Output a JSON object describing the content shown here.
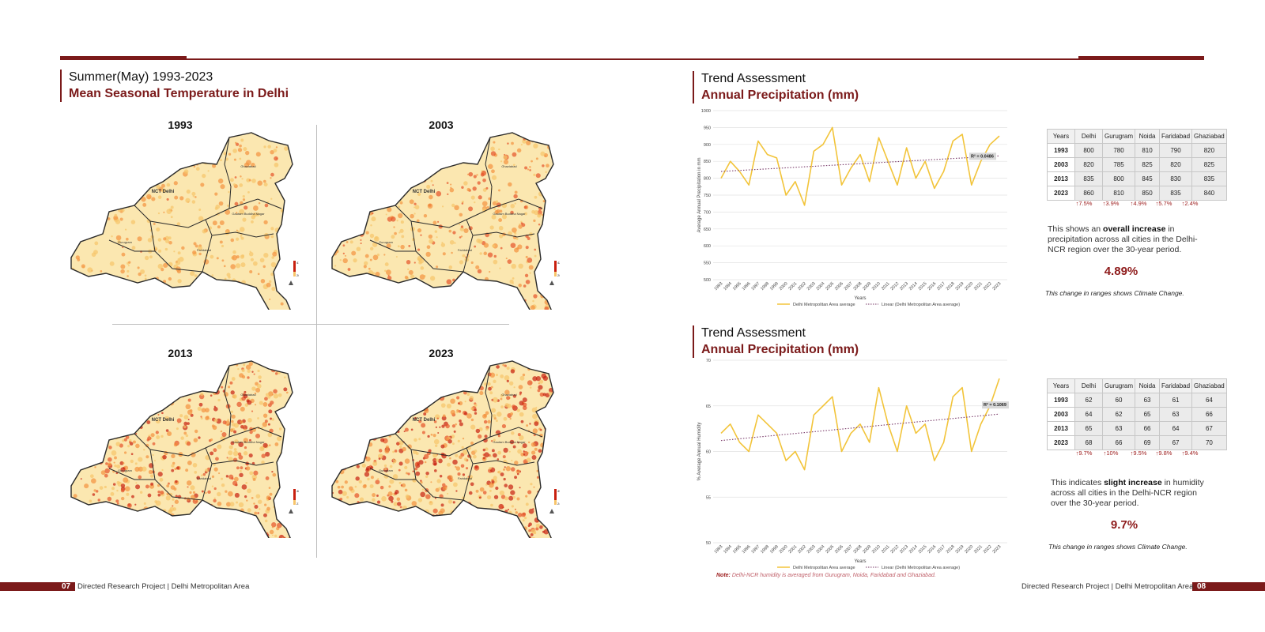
{
  "left_page": {
    "heading_top": "Summer(May) 1993-2023",
    "heading_bottom": "Mean Seasonal Temperature in Delhi",
    "maps": [
      {
        "year": "1993",
        "labels": [
          "NCT Delhi",
          "Ghaziabad",
          "Gautam Buddha Nagar",
          "Gurugram",
          "Faridabad"
        ],
        "legend_max": "41.05",
        "legend_min": "20.22",
        "heat": 0.25
      },
      {
        "year": "2003",
        "labels": [
          "NCT Delhi",
          "Ghaziabad",
          "Gautam Buddha Nagar",
          "Gurugram",
          "Faridabad"
        ],
        "legend_max": "42.94",
        "legend_min": "20.15",
        "heat": 0.4
      },
      {
        "year": "2013",
        "labels": [
          "NCT Delhi",
          "Ghaziabad",
          "Gautam Buddha Nagar",
          "Gurugram",
          "Faridabad"
        ],
        "legend_max": "46.98",
        "legend_min": "21.38",
        "heat": 0.7
      },
      {
        "year": "2023",
        "labels": [
          "NCT Delhi",
          "Ghaziabad",
          "Gautam Buddha Nagar",
          "Gurugram",
          "Faridabad"
        ],
        "legend_max": "49.67",
        "legend_min": "24.62",
        "heat": 0.85
      }
    ],
    "footer_num": "07",
    "footer_text": "Directed Research Project | Delhi Metropolitan Area"
  },
  "section1": {
    "heading_top": "Trend Assessment",
    "heading_bottom": "Annual Precipitation (mm)",
    "table": {
      "headers": [
        "Years",
        "Delhi",
        "Gurugram",
        "Noida",
        "Faridabad",
        "Ghaziabad"
      ],
      "rows": [
        [
          "1993",
          "800",
          "780",
          "810",
          "790",
          "820"
        ],
        [
          "2003",
          "820",
          "785",
          "825",
          "820",
          "825"
        ],
        [
          "2013",
          "835",
          "800",
          "845",
          "830",
          "835"
        ],
        [
          "2023",
          "860",
          "810",
          "850",
          "835",
          "840"
        ]
      ],
      "changes": [
        "↑7.5%",
        "↑3.9%",
        "↑4.9%",
        "↑5.7%",
        "↑2.4%"
      ]
    },
    "summary_pre": "This shows an ",
    "summary_bold": "overall increase",
    "summary_post": " in precipitation across all cities in the Delhi-NCR region over the 30-year period.",
    "big_pct": "4.89%",
    "note": "This change in ranges shows Climate Change."
  },
  "section2": {
    "heading_top": "Trend Assessment",
    "heading_bottom": "Annual Precipitation (mm)",
    "table": {
      "headers": [
        "Years",
        "Delhi",
        "Gurugram",
        "Noida",
        "Faridabad",
        "Ghaziabad"
      ],
      "rows": [
        [
          "1993",
          "62",
          "60",
          "63",
          "61",
          "64"
        ],
        [
          "2003",
          "64",
          "62",
          "65",
          "63",
          "66"
        ],
        [
          "2013",
          "65",
          "63",
          "66",
          "64",
          "67"
        ],
        [
          "2023",
          "68",
          "66",
          "69",
          "67",
          "70"
        ]
      ],
      "changes": [
        "↑9.7%",
        "↑10%",
        "↑9.5%",
        "↑9.8%",
        "↑9.4%"
      ]
    },
    "summary_pre": "This indicates ",
    "summary_bold": "slight increase",
    "summary_post": " in humidity across all cities in the Delhi-NCR region over the 30-year period.",
    "big_pct": "9.7%",
    "note": "This change in ranges shows Climate Change.",
    "footnote_label": "Note:",
    "footnote_text": "Delhi-NCR humidity is averaged from Gurugram, Noida, Faridabad and Ghaziabad."
  },
  "right_footer": {
    "footer_num": "08",
    "footer_text": "Directed Research Project | Delhi Metropolitan Area"
  },
  "colors": {
    "accent": "#7b1a1a",
    "line": "#f2c43a",
    "trend": "#7a3b6a"
  },
  "chart_data": [
    {
      "type": "line",
      "xlabel": "Years",
      "ylabel": "Average Annual Precipitation in mm",
      "ylim": [
        500,
        1000
      ],
      "yticks": [
        500,
        550,
        600,
        650,
        700,
        750,
        800,
        850,
        900,
        950,
        1000
      ],
      "x": [
        1993,
        1994,
        1995,
        1996,
        1997,
        1998,
        1999,
        2000,
        2001,
        2002,
        2003,
        2004,
        2005,
        2006,
        2007,
        2008,
        2009,
        2010,
        2011,
        2012,
        2013,
        2014,
        2015,
        2016,
        2017,
        2018,
        2019,
        2020,
        2021,
        2022,
        2023
      ],
      "series": [
        {
          "name": "Delhi Metropolitan Area average",
          "values": [
            800,
            850,
            820,
            780,
            910,
            870,
            860,
            750,
            790,
            720,
            880,
            900,
            950,
            780,
            830,
            870,
            790,
            920,
            850,
            780,
            890,
            800,
            850,
            770,
            820,
            910,
            930,
            780,
            850,
            900,
            925
          ]
        },
        {
          "name": "Linear (Delhi Metropolitan Area average)",
          "trend": true,
          "values_endpoints": [
            820,
            866
          ]
        }
      ],
      "r2_label": "R² = 0.0486",
      "grid": true,
      "legend_position": "bottom"
    },
    {
      "type": "line",
      "xlabel": "Years",
      "ylabel": "% Average Annual Humidity",
      "ylim": [
        50,
        70
      ],
      "yticks": [
        50,
        55,
        60,
        65,
        70
      ],
      "x": [
        1993,
        1994,
        1995,
        1996,
        1997,
        1998,
        1999,
        2000,
        2001,
        2002,
        2003,
        2004,
        2005,
        2006,
        2007,
        2008,
        2009,
        2010,
        2011,
        2012,
        2013,
        2014,
        2015,
        2016,
        2017,
        2018,
        2019,
        2020,
        2021,
        2022,
        2023
      ],
      "series": [
        {
          "name": "Delhi Metropolitan Area average",
          "values": [
            62,
            63,
            61,
            60,
            64,
            63,
            62,
            59,
            60,
            58,
            64,
            65,
            66,
            60,
            62,
            63,
            61,
            67,
            63,
            60,
            65,
            62,
            63,
            59,
            61,
            66,
            67,
            60,
            63,
            65,
            68
          ]
        },
        {
          "name": "Linear (Delhi Metropolitan Area average)",
          "trend": true,
          "values_endpoints": [
            61.2,
            64.1
          ]
        }
      ],
      "r2_label": "R² = 0.1069",
      "grid": true,
      "legend_position": "bottom"
    }
  ]
}
